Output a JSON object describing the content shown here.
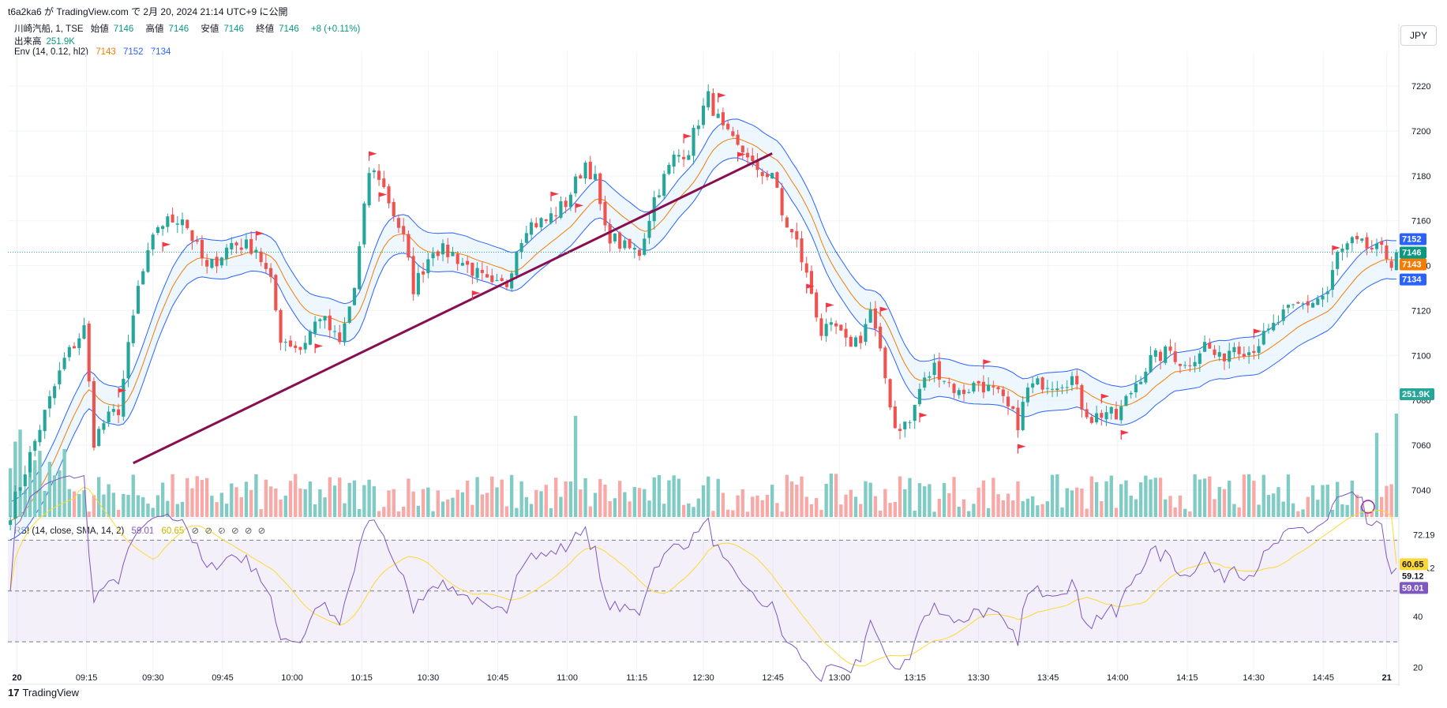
{
  "header": {
    "publish_line": "t6a2ka6 が TradingView.com で 2月 20, 2024 21:14 UTC+9 に公開"
  },
  "legend": {
    "symbol": "川崎汽船, 1, TSE",
    "open_label": "始値",
    "open": "7146",
    "high_label": "高値",
    "high": "7146",
    "low_label": "安値",
    "low": "7146",
    "close_label": "終値",
    "close": "7146",
    "change": "+8 (+0.11%)",
    "volume_label": "出来高",
    "volume": "251.9K",
    "env_label": "Env (14, 0.12, hl2)",
    "env_mid": "7143",
    "env_upper": "7152",
    "env_lower": "7134"
  },
  "rsi_legend": {
    "label": "RSI (14, close, SMA, 14, 2)",
    "rsi": "59.01",
    "sma": "60.65",
    "eyes": "⊘ ⊘ ⊘ ⊘ ⊘ ⊘"
  },
  "currency": "JPY",
  "brand": {
    "logo": "17",
    "name": "TradingView"
  },
  "colors": {
    "up": "#26a69a",
    "down": "#ef5350",
    "vol_up": "#80cbc4",
    "vol_down": "#f7a9a7",
    "env_band": "#2962ff",
    "env_mid": "#f57c00",
    "trendline": "#880e4f",
    "flag": "#f23645",
    "rsi_line": "#7e57c2",
    "rsi_sma": "#fdd835"
  },
  "chart_data": [
    {
      "type": "candlestick",
      "x_ticks": [
        "20",
        "09:15",
        "09:30",
        "09:45",
        "10:00",
        "10:15",
        "10:30",
        "10:45",
        "11:00",
        "11:15",
        "12:30",
        "12:45",
        "13:00",
        "13:15",
        "13:30",
        "13:45",
        "14:00",
        "14:15",
        "14:30",
        "14:45",
        "21"
      ],
      "y_ticks": [
        7040,
        7060,
        7080,
        7100,
        7120,
        7140,
        7160,
        7180,
        7200,
        7220
      ],
      "ylim": [
        7028,
        7232
      ],
      "price_path": [
        [
          0,
          7030
        ],
        [
          6,
          7068
        ],
        [
          11,
          7098
        ],
        [
          15,
          7112
        ],
        [
          17,
          7062
        ],
        [
          19,
          7070
        ],
        [
          22,
          7076
        ],
        [
          26,
          7130
        ],
        [
          30,
          7158
        ],
        [
          35,
          7162
        ],
        [
          40,
          7138
        ],
        [
          45,
          7150
        ],
        [
          50,
          7148
        ],
        [
          53,
          7132
        ],
        [
          55,
          7108
        ],
        [
          59,
          7103
        ],
        [
          63,
          7118
        ],
        [
          67,
          7105
        ],
        [
          70,
          7130
        ],
        [
          73,
          7182
        ],
        [
          75,
          7180
        ],
        [
          80,
          7152
        ],
        [
          82,
          7130
        ],
        [
          86,
          7148
        ],
        [
          90,
          7145
        ],
        [
          94,
          7138
        ],
        [
          98,
          7130
        ],
        [
          101,
          7132
        ],
        [
          103,
          7148
        ],
        [
          105,
          7158
        ],
        [
          109,
          7160
        ],
        [
          113,
          7168
        ],
        [
          117,
          7186
        ],
        [
          119,
          7178
        ],
        [
          121,
          7155
        ],
        [
          125,
          7148
        ],
        [
          128,
          7146
        ],
        [
          131,
          7170
        ],
        [
          135,
          7188
        ],
        [
          138,
          7192
        ],
        [
          140,
          7205
        ],
        [
          142,
          7215
        ],
        [
          145,
          7200
        ],
        [
          148,
          7192
        ],
        [
          150,
          7190
        ],
        [
          152,
          7180
        ],
        [
          155,
          7182
        ],
        [
          157,
          7162
        ],
        [
          160,
          7150
        ],
        [
          163,
          7128
        ],
        [
          165,
          7110
        ],
        [
          168,
          7112
        ],
        [
          170,
          7105
        ],
        [
          173,
          7108
        ],
        [
          175,
          7120
        ],
        [
          178,
          7090
        ],
        [
          180,
          7068
        ],
        [
          183,
          7070
        ],
        [
          185,
          7085
        ],
        [
          188,
          7095
        ],
        [
          190,
          7090
        ],
        [
          193,
          7083
        ],
        [
          197,
          7088
        ],
        [
          201,
          7082
        ],
        [
          203,
          7076
        ],
        [
          205,
          7070
        ],
        [
          207,
          7085
        ],
        [
          210,
          7088
        ],
        [
          213,
          7088
        ],
        [
          216,
          7090
        ],
        [
          218,
          7078
        ],
        [
          220,
          7072
        ],
        [
          223,
          7075
        ],
        [
          225,
          7072
        ],
        [
          229,
          7088
        ],
        [
          232,
          7098
        ],
        [
          236,
          7102
        ],
        [
          239,
          7095
        ],
        [
          243,
          7105
        ],
        [
          246,
          7098
        ],
        [
          249,
          7105
        ],
        [
          252,
          7102
        ],
        [
          256,
          7110
        ],
        [
          259,
          7118
        ],
        [
          262,
          7122
        ],
        [
          265,
          7124
        ],
        [
          268,
          7128
        ],
        [
          270,
          7145
        ],
        [
          273,
          7150
        ],
        [
          276,
          7148
        ],
        [
          279,
          7146
        ],
        [
          282,
          7140
        ]
      ],
      "last_candle": {
        "open": 7138,
        "close": 7146
      },
      "envelope": {
        "period": 14,
        "percent": 0.12,
        "source": "hl2",
        "upper": 7152,
        "middle": 7143,
        "lower": 7134
      },
      "trendline": [
        [
          25,
          7052
        ],
        [
          155,
          7190
        ]
      ],
      "current_price": 7146,
      "price_labels": [
        "7152",
        "7146",
        "7143",
        "7134"
      ],
      "volume_label": "251.9K",
      "last_volume": 251.9,
      "flags": [
        [
          22,
          "high"
        ],
        [
          31,
          "low"
        ],
        [
          50,
          "high"
        ],
        [
          62,
          "low"
        ],
        [
          73,
          "high"
        ],
        [
          75,
          "low"
        ],
        [
          94,
          "low"
        ],
        [
          110,
          "high"
        ],
        [
          115,
          "low"
        ],
        [
          137,
          "high"
        ],
        [
          144,
          "high"
        ],
        [
          148,
          "low"
        ],
        [
          162,
          "low"
        ],
        [
          166,
          "high"
        ],
        [
          177,
          "high"
        ],
        [
          185,
          "low"
        ],
        [
          198,
          "high"
        ],
        [
          205,
          "low"
        ],
        [
          222,
          "high"
        ],
        [
          226,
          "low"
        ],
        [
          253,
          "high"
        ],
        [
          269,
          "high"
        ]
      ]
    },
    {
      "type": "line",
      "name": "RSI (14, close, SMA, 14, 2)",
      "y_ticks": [
        20,
        40,
        59.12,
        72.19
      ],
      "ylim": [
        17,
        76
      ],
      "bands": [
        30,
        50,
        70
      ],
      "rsi_last": 59.01,
      "sma_last": 60.65,
      "price_labels": [
        "60.65",
        "59.12",
        "59.01"
      ]
    }
  ]
}
